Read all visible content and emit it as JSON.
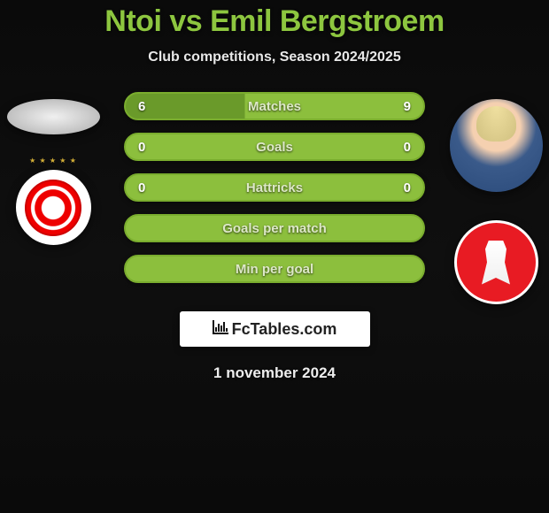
{
  "header": {
    "title": "Ntoi vs Emil Bergstroem",
    "title_color": "#8dc63f",
    "subtitle": "Club competitions, Season 2024/2025"
  },
  "players": {
    "left": {
      "name": "Ntoi",
      "club": "Olympiacos"
    },
    "right": {
      "name": "Emil Bergstroem",
      "club": "Al-Arabi"
    }
  },
  "colors": {
    "bar_green": "#8cbf3d",
    "bar_dark_green": "#6a9a2a",
    "bar_border": "#7aad2e",
    "background": "#0a0a0a"
  },
  "stats": [
    {
      "label": "Matches",
      "left_value": "6",
      "right_value": "9",
      "split_pct": 40,
      "left_color": "#6a9a2a",
      "right_color": "#8cbf3d"
    },
    {
      "label": "Goals",
      "left_value": "0",
      "right_value": "0",
      "split_pct": 50,
      "left_color": "#8cbf3d",
      "right_color": "#8cbf3d"
    },
    {
      "label": "Hattricks",
      "left_value": "0",
      "right_value": "0",
      "split_pct": 50,
      "left_color": "#8cbf3d",
      "right_color": "#8cbf3d"
    },
    {
      "label": "Goals per match",
      "left_value": "",
      "right_value": "",
      "split_pct": 50,
      "left_color": "#8cbf3d",
      "right_color": "#8cbf3d"
    },
    {
      "label": "Min per goal",
      "left_value": "",
      "right_value": "",
      "split_pct": 50,
      "left_color": "#8cbf3d",
      "right_color": "#8cbf3d"
    }
  ],
  "watermark": {
    "text": "FcTables.com",
    "icon": "📊"
  },
  "footer": {
    "date": "1 november 2024"
  }
}
